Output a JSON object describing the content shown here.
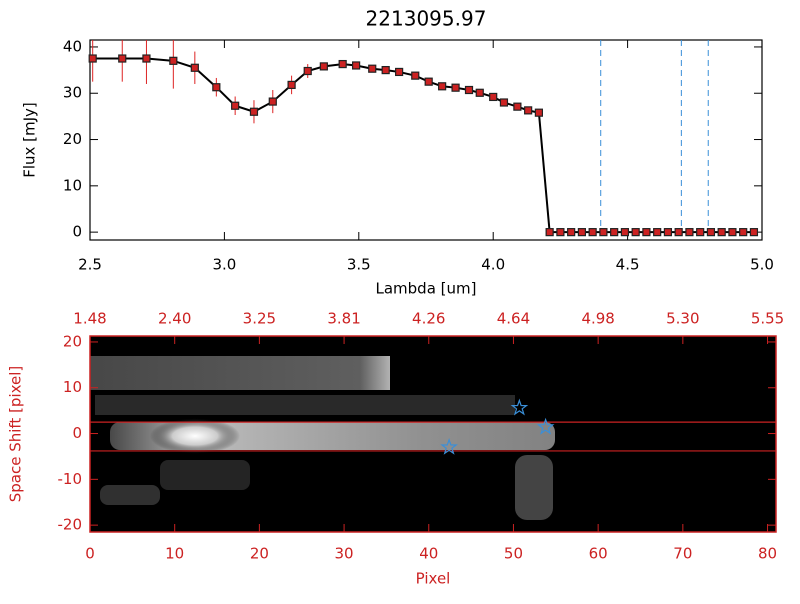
{
  "chart_data": [
    {
      "type": "line",
      "title": "2213095.97",
      "x_label": "Lambda [um]",
      "y_label": "Flux [mJy]",
      "xlim": [
        2.5,
        5.0
      ],
      "xticks": [
        2.5,
        {
          "value": 3,
          "label": "3.0"
        },
        3.5,
        {
          "value": 4,
          "label": "4.0"
        },
        4.5,
        {
          "value": 5,
          "label": "5.0"
        }
      ],
      "ylim": [
        -1.7,
        41.5
      ],
      "yticks": [
        0,
        10,
        20,
        30,
        40
      ],
      "x": [
        2.51,
        2.62,
        2.71,
        2.81,
        2.89,
        2.97,
        3.04,
        3.11,
        3.18,
        3.25,
        3.31,
        3.37,
        3.44,
        3.49,
        3.55,
        3.6,
        3.65,
        3.71,
        3.76,
        3.81,
        3.86,
        3.91,
        3.95,
        4.0,
        4.04,
        4.09,
        4.13,
        4.17,
        4.21,
        4.25,
        4.29,
        4.33,
        4.37,
        4.41,
        4.45,
        4.49,
        4.53,
        4.57,
        4.61,
        4.65,
        4.69,
        4.73,
        4.77,
        4.81,
        4.85,
        4.89,
        4.93,
        4.97
      ],
      "series": [
        {
          "color": "#000000",
          "marker_color": "#cc2222",
          "error_color": "#dd2222",
          "values": [
            37.5,
            37.5,
            37.5,
            37,
            35.5,
            31.3,
            27.3,
            26,
            28.2,
            31.8,
            34.8,
            35.8,
            36.3,
            36,
            35.3,
            35,
            34.6,
            33.8,
            32.5,
            31.5,
            31.2,
            30.7,
            30.1,
            29.2,
            28,
            27.1,
            26.3,
            25.8,
            0,
            0,
            0,
            0,
            0,
            0,
            0,
            0,
            0,
            0,
            0,
            0,
            0,
            0,
            0,
            0,
            0,
            0,
            0,
            0
          ],
          "errors": [
            5,
            5,
            5.5,
            6,
            3.5,
            2,
            2,
            2.5,
            2.5,
            2,
            1.5,
            0.8,
            0.5,
            0.5,
            0.5,
            0.5,
            0.5,
            0.5,
            0.5,
            0.5,
            0.5,
            0.5,
            0.5,
            0.5,
            0.5,
            0.5,
            0.5,
            0.5,
            0,
            0,
            0,
            0,
            0,
            0,
            0,
            0,
            0,
            0,
            0,
            0,
            0,
            0,
            0,
            0,
            0,
            0,
            0,
            0
          ]
        }
      ],
      "vlines": [
        4.4,
        4.7,
        4.8
      ],
      "vline_color": "#3a8fd8"
    },
    {
      "type": "image",
      "x_label": "Pixel",
      "y_label": "Space Shift [pixel]",
      "axis_color": "#cc2222",
      "xlim": [
        0,
        81
      ],
      "xticks": [
        0,
        10,
        20,
        30,
        40,
        50,
        60,
        70,
        80
      ],
      "x2ticklabels": [
        "1.48",
        "2.40",
        "3.25",
        "3.81",
        "4.26",
        "4.64",
        "4.98",
        "5.30",
        "5.55"
      ],
      "ylim": [
        -21.5,
        21.3
      ],
      "yticks": [
        -20,
        -10,
        0,
        10,
        20
      ],
      "hlines": [
        2.5,
        -3.8
      ],
      "stars": {
        "color": "#3a8fd8",
        "x": [
          42.4,
          50.7,
          53.8
        ],
        "y": [
          -3,
          5.6,
          1.4
        ]
      }
    }
  ]
}
